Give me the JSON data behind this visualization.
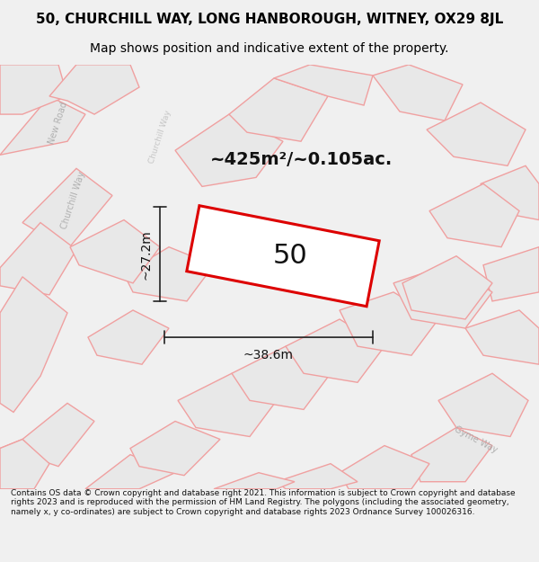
{
  "title_line1": "50, CHURCHILL WAY, LONG HANBOROUGH, WITNEY, OX29 8JL",
  "title_line2": "Map shows position and indicative extent of the property.",
  "area_label": "~425m²/~0.105ac.",
  "plot_number": "50",
  "width_label": "~38.6m",
  "height_label": "~27.2m",
  "footer": "Contains OS data © Crown copyright and database right 2021. This information is subject to Crown copyright and database rights 2023 and is reproduced with the permission of HM Land Registry. The polygons (including the associated geometry, namely x, y co-ordinates) are subject to Crown copyright and database rights 2023 Ordnance Survey 100026316.",
  "map_bg": "#ffffff",
  "road_fill": "#e8e8e8",
  "road_stroke": "#f0a0a0",
  "plot_stroke": "#dd0000",
  "title_color": "#000000",
  "area_label_size": 14,
  "plot_number_size": 22,
  "dim_label_size": 10,
  "title_size1": 11,
  "title_size2": 10
}
